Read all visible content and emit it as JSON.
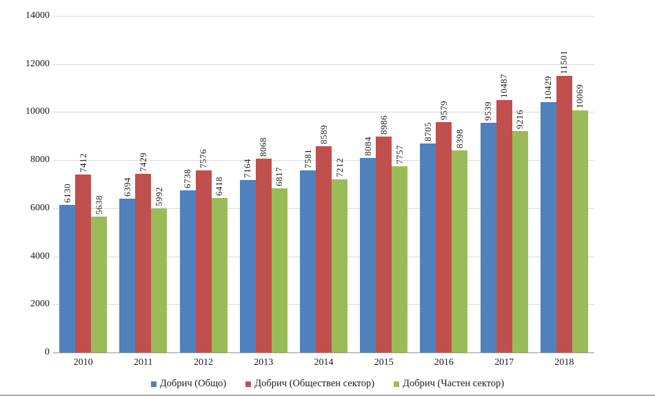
{
  "chart_data": {
    "type": "bar",
    "title": "",
    "xlabel": "",
    "ylabel": "",
    "categories": [
      "2010",
      "2011",
      "2012",
      "2013",
      "2014",
      "2015",
      "2016",
      "2017",
      "2018"
    ],
    "series": [
      {
        "name": "Добрич (Общо)",
        "color": "#4F81BD",
        "values": [
          6130,
          6394,
          6738,
          7164,
          7581,
          8084,
          8705,
          9539,
          10429
        ]
      },
      {
        "name": "Добрич (Обществен сектор)",
        "color": "#C0504D",
        "values": [
          7412,
          7429,
          7576,
          8068,
          8589,
          8986,
          9579,
          10487,
          11501
        ]
      },
      {
        "name": "Добрич (Частен сектор)",
        "color": "#9BBB59",
        "values": [
          5638,
          5992,
          6418,
          6817,
          7212,
          7757,
          8398,
          9216,
          10069
        ]
      }
    ],
    "ylim": [
      0,
      14000
    ],
    "yticks": [
      0,
      2000,
      4000,
      6000,
      8000,
      10000,
      12000,
      14000
    ],
    "grid": true,
    "legend_position": "bottom",
    "bar_value_labels": "rotated-vertical"
  },
  "colors": {
    "gridline": "#d9d9d9",
    "axis_line": "#969696",
    "text": "#1a1a1a",
    "bottom_rule": "#a6a6a6"
  }
}
